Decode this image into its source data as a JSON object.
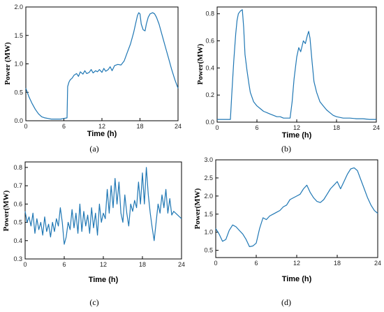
{
  "figure": {
    "line_color": "#1f77b4"
  },
  "chart_data": [
    {
      "type": "line",
      "panel": "a",
      "caption": "(a)",
      "xlabel": "Time (h)",
      "ylabel": "Power (MW)",
      "xlim": [
        0,
        24
      ],
      "ylim": [
        0,
        2.0
      ],
      "xticks": [
        0,
        6,
        12,
        18,
        24
      ],
      "yticks": [
        0.0,
        0.5,
        1.0,
        1.5,
        2.0
      ],
      "ytick_labels": [
        "0.0",
        "0.5",
        "1.0",
        "1.5",
        "2.0"
      ],
      "grid": false,
      "x": [
        0,
        0.5,
        1,
        1.5,
        2,
        2.5,
        3,
        3.5,
        4,
        4.5,
        5,
        5.5,
        6,
        6.5,
        6.6,
        6.8,
        7,
        7.3,
        7.6,
        8,
        8.3,
        8.6,
        9,
        9.3,
        9.6,
        10,
        10.3,
        10.6,
        11,
        11.3,
        11.6,
        12,
        12.3,
        12.6,
        13,
        13.3,
        13.6,
        14,
        14.5,
        15,
        15.5,
        16,
        16.5,
        17,
        17.3,
        17.6,
        17.8,
        18,
        18.2,
        18.5,
        18.8,
        19,
        19.3,
        19.6,
        20,
        20.3,
        20.6,
        21,
        21.5,
        22,
        22.5,
        23,
        23.5,
        24
      ],
      "y": [
        0.57,
        0.42,
        0.3,
        0.2,
        0.12,
        0.07,
        0.05,
        0.04,
        0.03,
        0.03,
        0.03,
        0.03,
        0.04,
        0.05,
        0.6,
        0.68,
        0.72,
        0.75,
        0.8,
        0.83,
        0.78,
        0.86,
        0.82,
        0.88,
        0.83,
        0.85,
        0.9,
        0.84,
        0.88,
        0.86,
        0.9,
        0.85,
        0.92,
        0.87,
        0.9,
        0.95,
        0.88,
        0.97,
        0.99,
        0.98,
        1.05,
        1.2,
        1.35,
        1.55,
        1.7,
        1.85,
        1.9,
        1.88,
        1.7,
        1.6,
        1.58,
        1.7,
        1.82,
        1.88,
        1.9,
        1.88,
        1.82,
        1.7,
        1.5,
        1.3,
        1.1,
        0.9,
        0.72,
        0.57
      ]
    },
    {
      "type": "line",
      "panel": "b",
      "caption": "(b)",
      "xlabel": "Time (h)",
      "ylabel": "Power(MW)",
      "xlim": [
        0,
        24
      ],
      "ylim": [
        0,
        0.85
      ],
      "xticks": [
        0,
        6,
        12,
        18,
        24
      ],
      "yticks": [
        0.0,
        0.2,
        0.4,
        0.6,
        0.8
      ],
      "ytick_labels": [
        "0.0",
        "0.2",
        "0.4",
        "0.6",
        "0.8"
      ],
      "grid": false,
      "x": [
        0,
        0.5,
        1,
        1.5,
        2,
        2.2,
        2.5,
        2.8,
        3,
        3.2,
        3.5,
        3.8,
        4,
        4.2,
        4.5,
        4.8,
        5,
        5.5,
        6,
        6.5,
        7,
        7.5,
        8,
        8.5,
        9,
        9.5,
        10,
        10.5,
        11,
        11.3,
        11.6,
        12,
        12.3,
        12.6,
        13,
        13.3,
        13.6,
        13.8,
        14,
        14.3,
        14.6,
        15,
        15.5,
        16,
        16.5,
        17,
        17.5,
        18,
        19,
        20,
        21,
        22,
        23,
        24
      ],
      "y": [
        0.02,
        0.02,
        0.02,
        0.02,
        0.02,
        0.2,
        0.45,
        0.65,
        0.75,
        0.8,
        0.82,
        0.83,
        0.7,
        0.5,
        0.38,
        0.28,
        0.22,
        0.15,
        0.12,
        0.1,
        0.08,
        0.07,
        0.06,
        0.05,
        0.04,
        0.04,
        0.03,
        0.03,
        0.03,
        0.15,
        0.32,
        0.48,
        0.55,
        0.52,
        0.6,
        0.58,
        0.64,
        0.67,
        0.62,
        0.45,
        0.3,
        0.22,
        0.15,
        0.12,
        0.09,
        0.07,
        0.05,
        0.04,
        0.03,
        0.03,
        0.025,
        0.025,
        0.02,
        0.02
      ]
    },
    {
      "type": "line",
      "panel": "c",
      "caption": "(c)",
      "xlabel": "Time (h)",
      "ylabel": "Power(MW)",
      "xlim": [
        0,
        24
      ],
      "ylim": [
        0.3,
        0.83
      ],
      "xticks": [
        0,
        6,
        12,
        18,
        24
      ],
      "yticks": [
        0.3,
        0.4,
        0.5,
        0.6,
        0.7,
        0.8
      ],
      "ytick_labels": [
        "0.3",
        "0.4",
        "0.5",
        "0.6",
        "0.7",
        "0.8"
      ],
      "grid": false,
      "x": [
        0,
        0.3,
        0.6,
        0.9,
        1.2,
        1.5,
        1.8,
        2.1,
        2.4,
        2.7,
        3.0,
        3.3,
        3.6,
        3.9,
        4.2,
        4.5,
        4.8,
        5.1,
        5.4,
        5.7,
        6.0,
        6.3,
        6.6,
        6.9,
        7.2,
        7.5,
        7.8,
        8.1,
        8.4,
        8.7,
        9.0,
        9.3,
        9.6,
        9.9,
        10.2,
        10.5,
        10.8,
        11.1,
        11.4,
        11.7,
        12.0,
        12.3,
        12.6,
        12.9,
        13.2,
        13.5,
        13.8,
        14.1,
        14.4,
        14.7,
        15.0,
        15.3,
        15.6,
        15.9,
        16.2,
        16.5,
        16.8,
        17.1,
        17.4,
        17.7,
        18.0,
        18.3,
        18.6,
        18.9,
        19.2,
        19.5,
        19.8,
        20.1,
        20.4,
        20.7,
        21.0,
        21.3,
        21.6,
        21.9,
        22.2,
        22.5,
        22.8,
        23.1,
        23.4,
        23.7,
        24.0
      ],
      "y": [
        0.56,
        0.5,
        0.53,
        0.48,
        0.55,
        0.44,
        0.52,
        0.46,
        0.5,
        0.43,
        0.53,
        0.45,
        0.49,
        0.42,
        0.5,
        0.45,
        0.52,
        0.48,
        0.58,
        0.5,
        0.38,
        0.42,
        0.5,
        0.46,
        0.57,
        0.47,
        0.55,
        0.44,
        0.6,
        0.45,
        0.56,
        0.48,
        0.54,
        0.44,
        0.58,
        0.47,
        0.55,
        0.43,
        0.6,
        0.5,
        0.55,
        0.52,
        0.68,
        0.55,
        0.7,
        0.58,
        0.74,
        0.6,
        0.72,
        0.55,
        0.5,
        0.65,
        0.55,
        0.48,
        0.6,
        0.56,
        0.62,
        0.58,
        0.72,
        0.6,
        0.77,
        0.6,
        0.8,
        0.65,
        0.55,
        0.47,
        0.4,
        0.5,
        0.6,
        0.55,
        0.65,
        0.58,
        0.68,
        0.55,
        0.63,
        0.54,
        0.56,
        0.55,
        0.54,
        0.53,
        0.52
      ]
    },
    {
      "type": "line",
      "panel": "d",
      "caption": "(d)",
      "xlabel": "Time (h)",
      "ylabel": "Power(MW)",
      "xlim": [
        0,
        24
      ],
      "ylim": [
        0.3,
        3.0
      ],
      "xticks": [
        0,
        6,
        12,
        18,
        24
      ],
      "yticks": [
        0.5,
        1.0,
        1.5,
        2.0,
        2.5,
        3.0
      ],
      "ytick_labels": [
        "0.5",
        "1.0",
        "1.5",
        "2.0",
        "2.5",
        "3.0"
      ],
      "grid": false,
      "x": [
        0,
        0.5,
        1,
        1.5,
        2,
        2.5,
        3,
        3.5,
        4,
        4.5,
        5,
        5.5,
        6,
        6.5,
        7,
        7.5,
        8,
        8.5,
        9,
        9.5,
        10,
        10.5,
        11,
        11.5,
        12,
        12.5,
        13,
        13.5,
        14,
        14.5,
        15,
        15.5,
        16,
        16.5,
        17,
        17.5,
        18,
        18.5,
        19,
        19.5,
        20,
        20.5,
        21,
        21.5,
        22,
        22.5,
        23,
        23.5,
        24
      ],
      "y": [
        1.1,
        0.95,
        0.75,
        0.8,
        1.05,
        1.2,
        1.15,
        1.05,
        0.95,
        0.8,
        0.6,
        0.62,
        0.7,
        1.1,
        1.4,
        1.35,
        1.45,
        1.5,
        1.55,
        1.6,
        1.7,
        1.75,
        1.9,
        1.95,
        2.0,
        2.05,
        2.2,
        2.3,
        2.1,
        1.95,
        1.85,
        1.82,
        1.9,
        2.05,
        2.2,
        2.3,
        2.4,
        2.2,
        2.4,
        2.6,
        2.75,
        2.78,
        2.7,
        2.45,
        2.2,
        1.95,
        1.75,
        1.6,
        1.52
      ]
    }
  ]
}
